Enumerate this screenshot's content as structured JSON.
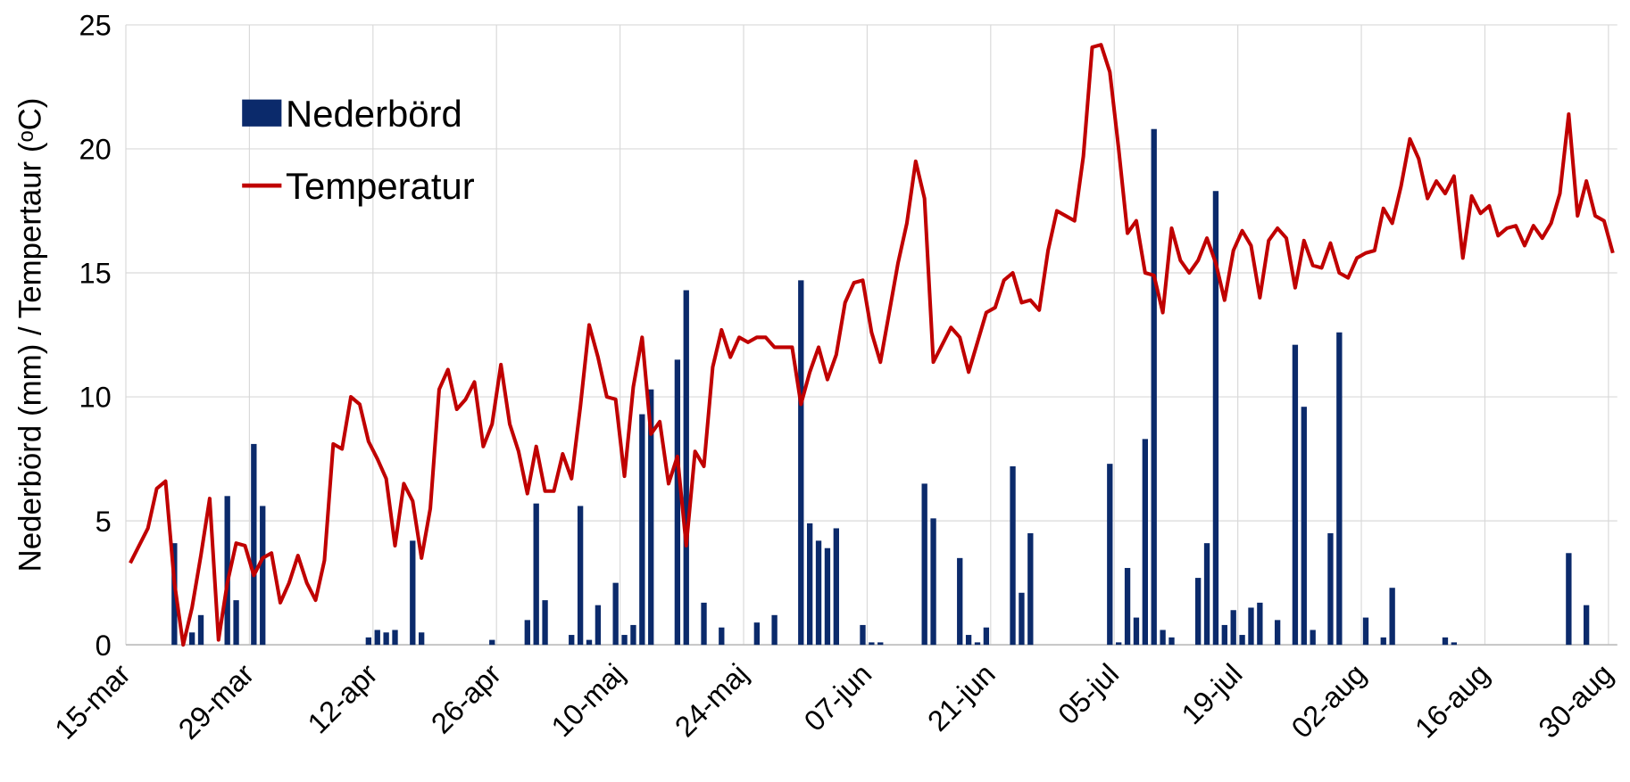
{
  "chart_data": {
    "type": "bar",
    "ylabel": "Nederbörd (mm) / Tempertaur (ᵒC)",
    "categories": [
      "15-mar",
      null,
      null,
      null,
      null,
      null,
      null,
      null,
      null,
      null,
      null,
      null,
      null,
      null,
      "29-mar",
      null,
      null,
      null,
      null,
      null,
      null,
      null,
      null,
      null,
      null,
      null,
      null,
      null,
      "12-apr",
      null,
      null,
      null,
      null,
      null,
      null,
      null,
      null,
      null,
      null,
      null,
      null,
      null,
      "26-apr",
      null,
      null,
      null,
      null,
      null,
      null,
      null,
      null,
      null,
      null,
      null,
      null,
      null,
      "10-maj",
      null,
      null,
      null,
      null,
      null,
      null,
      null,
      null,
      null,
      null,
      null,
      null,
      null,
      "24-maj",
      null,
      null,
      null,
      null,
      null,
      null,
      null,
      null,
      null,
      null,
      null,
      null,
      null,
      "07-jun",
      null,
      null,
      null,
      null,
      null,
      null,
      null,
      null,
      null,
      null,
      null,
      null,
      null,
      "21-jun",
      null,
      null,
      null,
      null,
      null,
      null,
      null,
      null,
      null,
      null,
      null,
      null,
      null,
      "05-jul",
      null,
      null,
      null,
      null,
      null,
      null,
      null,
      null,
      null,
      null,
      null,
      null,
      null,
      "19-jul",
      null,
      null,
      null,
      null,
      null,
      null,
      null,
      null,
      null,
      null,
      null,
      null,
      null,
      "02-aug",
      null,
      null,
      null,
      null,
      null,
      null,
      null,
      null,
      null,
      null,
      null,
      null,
      null,
      "16-aug",
      null,
      null,
      null,
      null,
      null,
      null,
      null,
      null,
      null,
      null,
      null,
      null,
      null,
      "30-aug"
    ],
    "series": [
      {
        "name": "Nederbörd",
        "type": "bar",
        "color": "#0b2a6b",
        "values": [
          0,
          0,
          0,
          0,
          0,
          4.1,
          0,
          0.5,
          1.2,
          0,
          0,
          6.0,
          1.8,
          0,
          8.1,
          5.6,
          0,
          0,
          0,
          0,
          0,
          0,
          0,
          0,
          0,
          0,
          0,
          0.3,
          0.6,
          0.5,
          0.6,
          0,
          4.2,
          0.5,
          0,
          0,
          0,
          0,
          0,
          0,
          0,
          0.2,
          0,
          0,
          0,
          1.0,
          5.7,
          1.8,
          0,
          0,
          0.4,
          5.6,
          0.2,
          1.6,
          0,
          2.5,
          0.4,
          0.8,
          9.3,
          10.3,
          0,
          0,
          11.5,
          14.3,
          0,
          1.7,
          0,
          0.7,
          0,
          0,
          0,
          0.9,
          0,
          1.2,
          0,
          0,
          14.7,
          4.9,
          4.2,
          3.9,
          4.7,
          0,
          0,
          0.8,
          0.1,
          0.1,
          0,
          0,
          0,
          0,
          6.5,
          5.1,
          0,
          0,
          3.5,
          0.4,
          0.1,
          0.7,
          0,
          0,
          7.2,
          2.1,
          4.5,
          0,
          0,
          0,
          0,
          0,
          0,
          0,
          0,
          7.3,
          0.1,
          3.1,
          1.1,
          8.3,
          20.8,
          0.6,
          0.3,
          0,
          0,
          2.7,
          4.1,
          18.3,
          0.8,
          1.4,
          0.4,
          1.5,
          1.7,
          0,
          1.0,
          0,
          12.1,
          9.6,
          0.6,
          0,
          4.5,
          12.6,
          0,
          0,
          1.1,
          0,
          0.3,
          2.3,
          0,
          0,
          0,
          0,
          0,
          0.3,
          0.1,
          0,
          0,
          0,
          0,
          0,
          0,
          0,
          0,
          0,
          0,
          0,
          0,
          3.7,
          0,
          1.6,
          0,
          0,
          0
        ]
      },
      {
        "name": "Temperatur",
        "type": "line",
        "color": "#c00000",
        "values": [
          3.3,
          4.0,
          4.7,
          6.3,
          6.6,
          2.5,
          0,
          1.5,
          3.6,
          5.9,
          0.2,
          2.5,
          4.1,
          4.0,
          2.8,
          3.5,
          3.7,
          1.7,
          2.5,
          3.6,
          2.5,
          1.8,
          3.4,
          8.1,
          7.9,
          10.0,
          9.7,
          8.2,
          7.5,
          6.7,
          4.0,
          6.5,
          5.8,
          3.5,
          5.5,
          10.3,
          11.1,
          9.5,
          9.9,
          10.6,
          8.0,
          8.9,
          11.3,
          8.9,
          7.8,
          6.1,
          8.0,
          6.2,
          6.2,
          7.7,
          6.7,
          9.6,
          12.9,
          11.6,
          10.0,
          9.9,
          6.8,
          10.4,
          12.4,
          8.5,
          9.0,
          6.5,
          7.6,
          4.0,
          7.8,
          7.2,
          11.2,
          12.7,
          11.6,
          12.4,
          12.2,
          12.4,
          12.4,
          12.0,
          12.0,
          12.0,
          9.7,
          11.0,
          12.0,
          10.7,
          11.7,
          13.8,
          14.6,
          14.7,
          12.6,
          11.4,
          13.4,
          15.4,
          17.0,
          19.5,
          18.0,
          11.4,
          12.1,
          12.8,
          12.4,
          11.0,
          12.2,
          13.4,
          13.6,
          14.7,
          15.0,
          13.8,
          13.9,
          13.5,
          15.9,
          17.5,
          17.3,
          17.1,
          19.7,
          24.1,
          24.2,
          23.1,
          20.0,
          16.6,
          17.1,
          15.0,
          14.9,
          13.4,
          16.8,
          15.5,
          15.0,
          15.5,
          16.4,
          15.4,
          13.9,
          15.9,
          16.7,
          16.1,
          14.0,
          16.3,
          16.8,
          16.4,
          14.4,
          16.3,
          15.3,
          15.2,
          16.2,
          15.0,
          14.8,
          15.6,
          15.8,
          15.9,
          17.6,
          17.0,
          18.5,
          20.4,
          19.6,
          18.0,
          18.7,
          18.2,
          18.9,
          15.6,
          18.1,
          17.4,
          17.7,
          16.5,
          16.8,
          16.9,
          16.1,
          16.9,
          16.4,
          17.0,
          18.2,
          21.4,
          17.3,
          18.7,
          17.3,
          17.1,
          15.8
        ]
      }
    ],
    "ylim": [
      0,
      25
    ],
    "yticks": [
      0,
      5,
      10,
      15,
      20,
      25
    ],
    "grid": true,
    "legend": "top-left"
  }
}
